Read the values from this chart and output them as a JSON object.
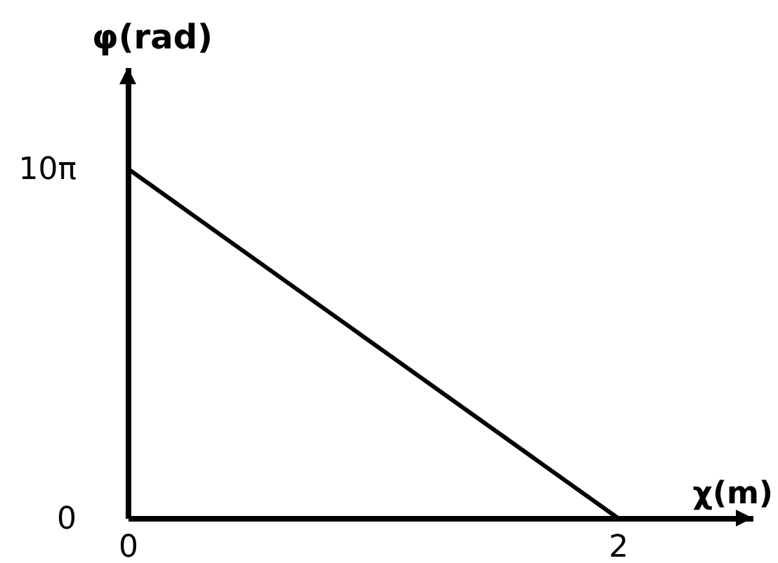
{
  "chart_data": {
    "type": "line",
    "xlabel": "χ(m)",
    "ylabel": "φ(rad)",
    "x": [
      0,
      2
    ],
    "values": [
      31.4,
      0
    ],
    "color": "#000000",
    "xlim": [
      0,
      2.55
    ],
    "ylim": [
      0,
      40.5
    ],
    "xticks": [
      0,
      2
    ],
    "yticks": [
      0,
      {
        "value": 31.4,
        "label": "10π"
      }
    ]
  }
}
